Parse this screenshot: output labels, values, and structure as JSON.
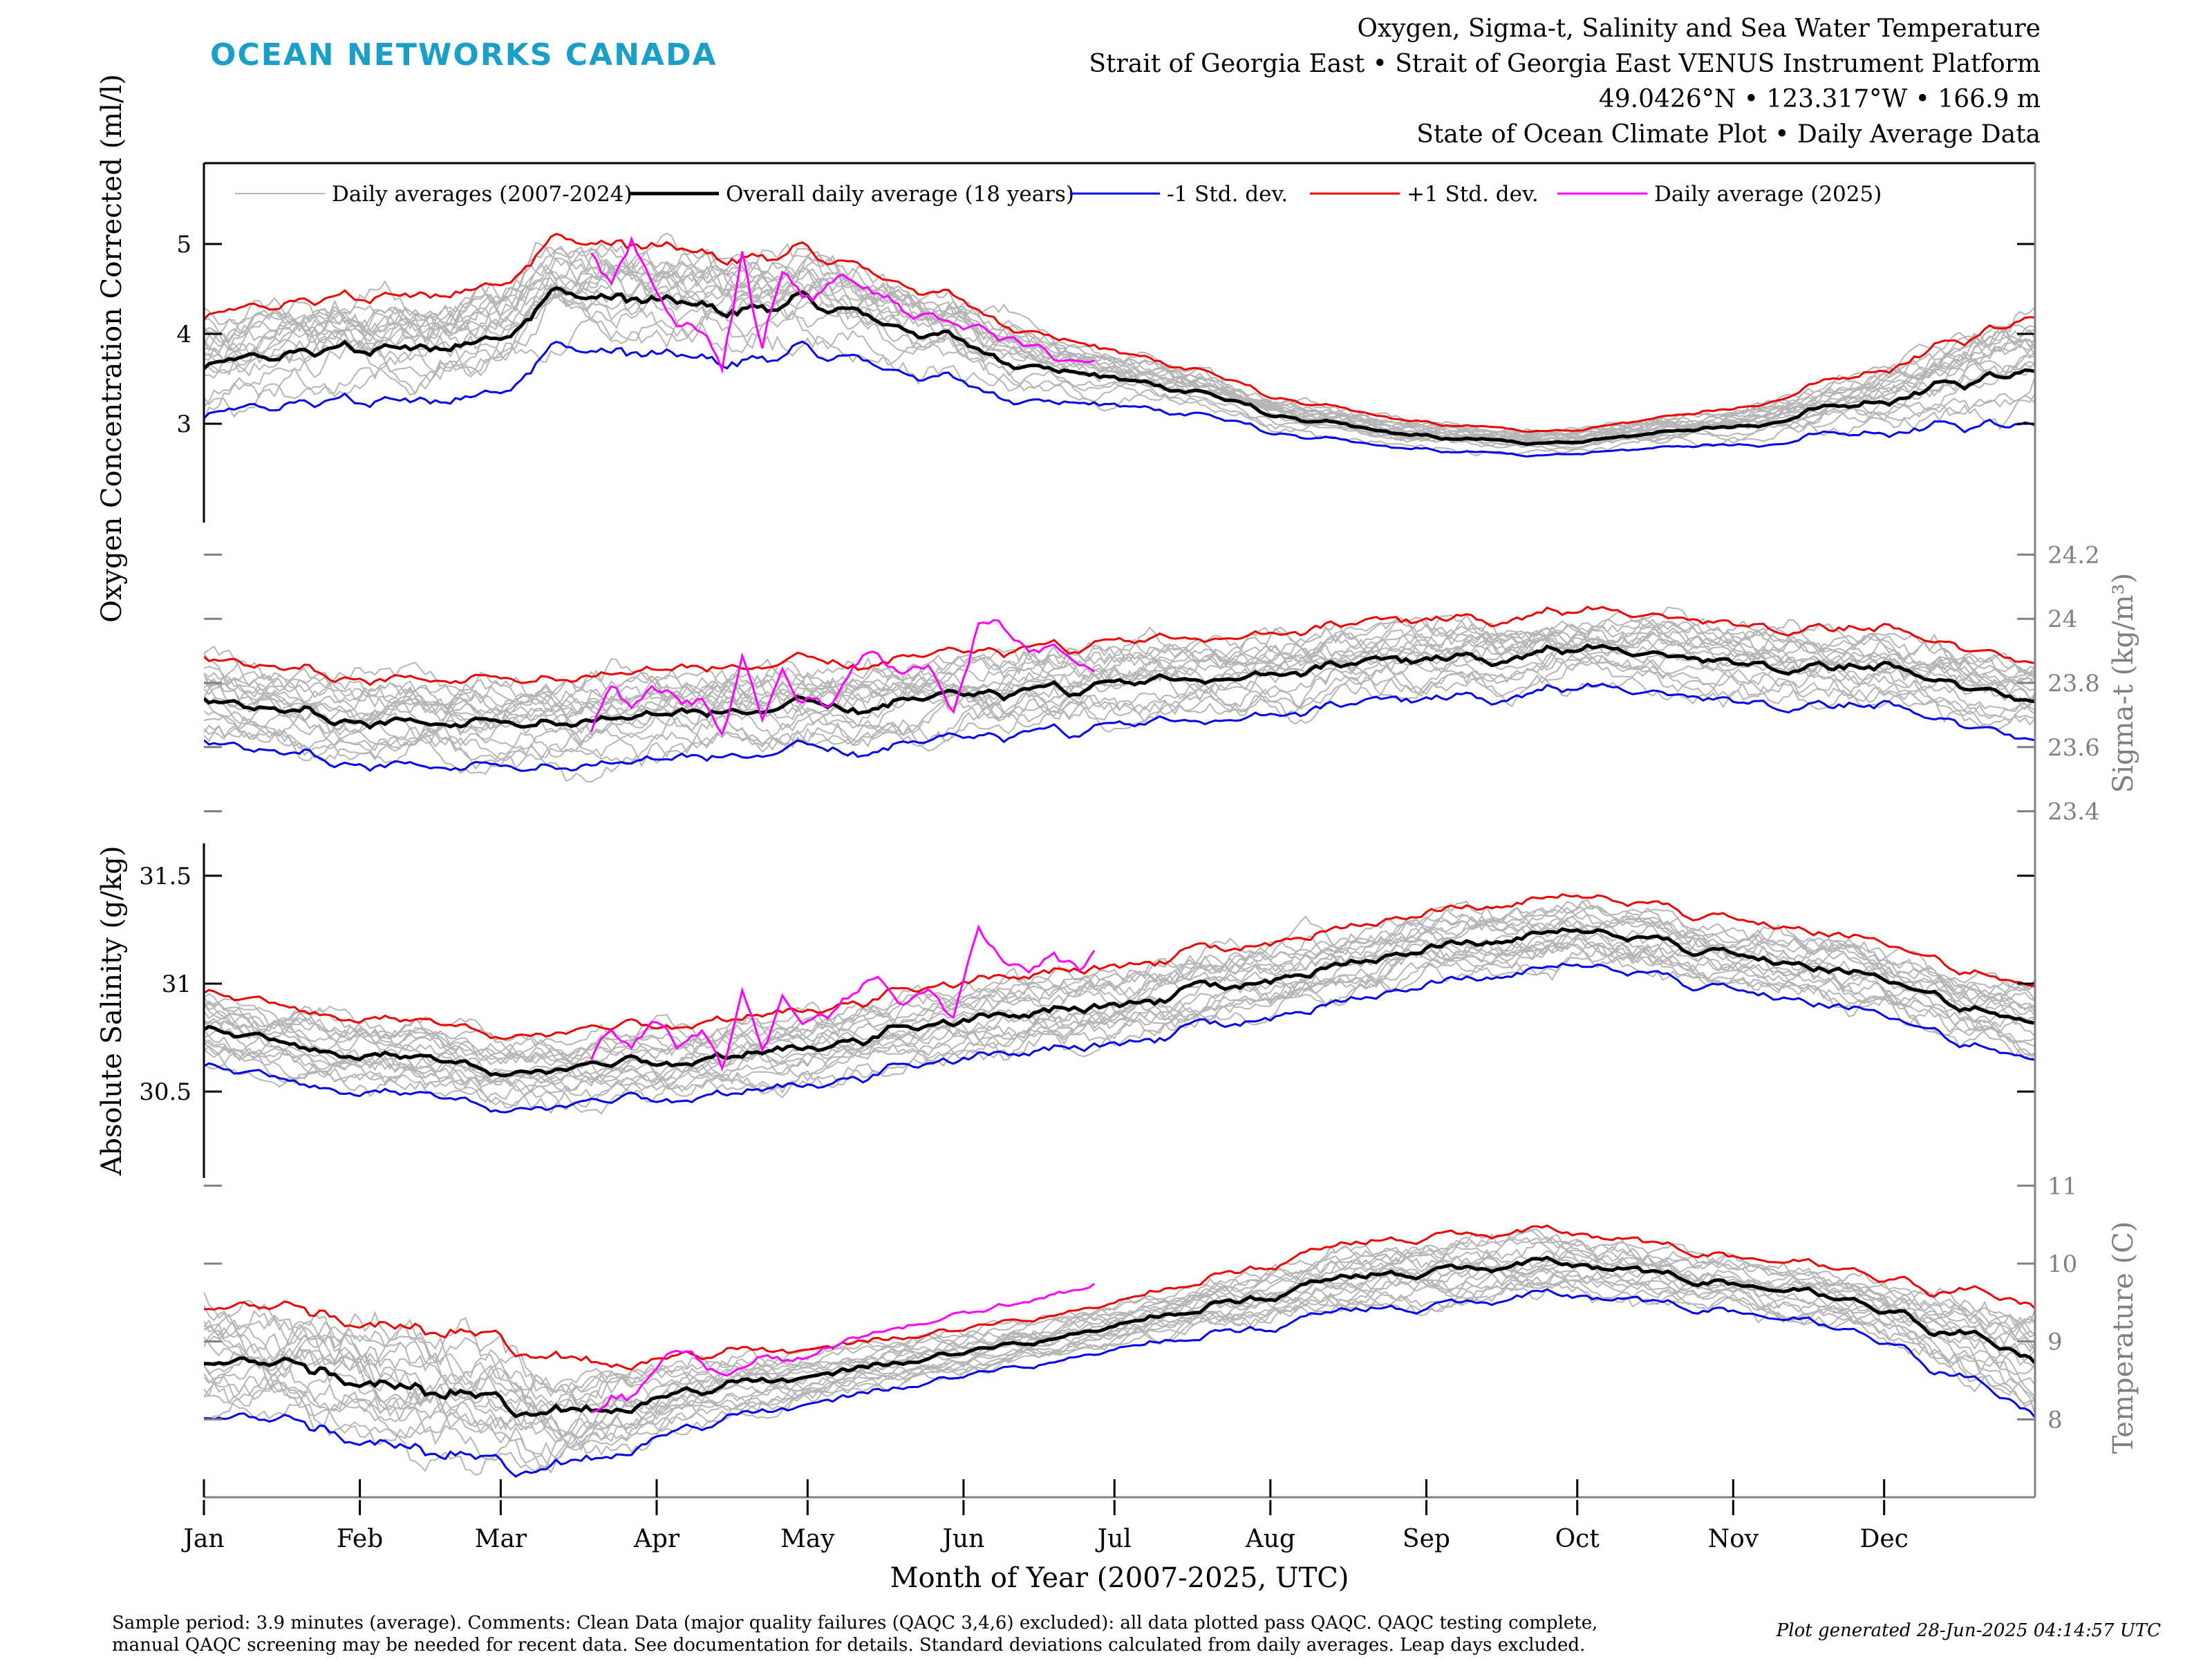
{
  "header": {
    "logo_text": "OCEAN NETWORKS CANADA",
    "title_lines": [
      "Oxygen, Sigma-t, Salinity and Sea Water Temperature",
      "Strait of Georgia East • Strait of Georgia East VENUS Instrument Platform",
      "49.0426°N • 123.317°W • 166.9 m",
      "State of Ocean Climate Plot • Daily Average Data"
    ]
  },
  "footer": {
    "notes_line1": "Sample period: 3.9 minutes (average). Comments: Clean Data (major quality failures (QAQC 3,4,6) excluded): all data plotted pass QAQC. QAQC testing complete,",
    "notes_line2": "manual QAQC screening may be needed for recent data. See documentation for details. Standard deviations calculated from daily averages. Leap days excluded.",
    "generated": "Plot generated 28-Jun-2025 04:14:57 UTC"
  },
  "colors": {
    "history": "#b5b5b5",
    "mean": "#000000",
    "minus_std": "#0000ee",
    "plus_std": "#ee0000",
    "current_year": "#ff00ff",
    "right_axis": "#808080",
    "logo": "#1a9fc8"
  },
  "chart_data": {
    "type": "line",
    "xlabel": "Month of Year (2007-2025, UTC)",
    "x_ticks": [
      "Jan",
      "Feb",
      "Mar",
      "Apr",
      "May",
      "Jun",
      "Jul",
      "Aug",
      "Sep",
      "Oct",
      "Nov",
      "Dec"
    ],
    "x_tick_days": [
      1,
      32,
      60,
      91,
      121,
      152,
      182,
      213,
      244,
      274,
      305,
      335
    ],
    "xlim": [
      1,
      365
    ],
    "legend": {
      "placement": "top",
      "entries": [
        "Daily averages (2007-2024)",
        "Overall daily average (18 years)",
        "-1 Std. dev.",
        "+1 Std. dev.",
        "Daily average (2025)"
      ]
    },
    "current_year_last_day": 178,
    "current_year_first_day": 78,
    "history_count": 18,
    "panels": [
      {
        "id": "oxygen",
        "ylabel": "Oxygen Concentration Corrected (ml/l)",
        "axis_side": "left",
        "yticks": [
          3,
          4,
          5
        ],
        "ylim": [
          1.9,
          5.9
        ],
        "mean": {
          "days": [
            1,
            15,
            32,
            45,
            60,
            70,
            91,
            105,
            121,
            135,
            152,
            165,
            182,
            200,
            213,
            230,
            244,
            260,
            274,
            290,
            305,
            320,
            335,
            350,
            365
          ],
          "values": [
            3.6,
            3.75,
            3.85,
            3.8,
            4.0,
            4.45,
            4.35,
            4.25,
            4.35,
            4.15,
            3.9,
            3.65,
            3.5,
            3.35,
            3.1,
            2.95,
            2.85,
            2.8,
            2.8,
            2.9,
            2.95,
            3.1,
            3.25,
            3.45,
            3.65
          ]
        },
        "std": {
          "days": [
            1,
            60,
            91,
            121,
            152,
            182,
            213,
            244,
            274,
            305,
            335,
            365
          ],
          "values": [
            0.55,
            0.6,
            0.6,
            0.55,
            0.45,
            0.3,
            0.2,
            0.15,
            0.13,
            0.2,
            0.35,
            0.6
          ]
        },
        "current": {
          "days": [
            78,
            82,
            86,
            90,
            95,
            100,
            104,
            108,
            112,
            116,
            120,
            125,
            130,
            135,
            140,
            145,
            150,
            155,
            160,
            165,
            170,
            175,
            178
          ],
          "values": [
            4.9,
            4.5,
            5.1,
            4.5,
            4.2,
            4.0,
            3.6,
            4.9,
            3.8,
            4.7,
            4.4,
            4.5,
            4.6,
            4.4,
            4.3,
            4.2,
            4.1,
            4.15,
            3.95,
            3.85,
            3.75,
            3.7,
            3.7
          ]
        }
      },
      {
        "id": "sigma_t",
        "ylabel": "Sigma-t (kg/m³)",
        "axis_side": "right",
        "yticks": [
          23.4,
          23.6,
          23.8,
          24,
          24.2
        ],
        "ylim": [
          23.3,
          24.3
        ],
        "mean": {
          "days": [
            1,
            15,
            32,
            45,
            60,
            75,
            91,
            105,
            121,
            135,
            152,
            165,
            182,
            200,
            213,
            230,
            244,
            260,
            274,
            290,
            305,
            320,
            335,
            350,
            365
          ],
          "values": [
            23.75,
            23.72,
            23.67,
            23.68,
            23.67,
            23.68,
            23.7,
            23.71,
            23.72,
            23.72,
            23.76,
            23.77,
            23.8,
            23.81,
            23.83,
            23.86,
            23.88,
            23.87,
            23.9,
            23.89,
            23.86,
            23.85,
            23.84,
            23.79,
            23.76
          ]
        },
        "std": {
          "days": [
            1,
            91,
            182,
            274,
            365
          ],
          "values": [
            0.13,
            0.14,
            0.13,
            0.12,
            0.12
          ]
        },
        "current": {
          "days": [
            78,
            82,
            86,
            90,
            95,
            100,
            104,
            108,
            112,
            116,
            120,
            125,
            130,
            135,
            140,
            145,
            150,
            155,
            160,
            165,
            170,
            175,
            178
          ],
          "values": [
            23.66,
            23.78,
            23.72,
            23.8,
            23.75,
            23.74,
            23.62,
            23.86,
            23.68,
            23.83,
            23.74,
            23.72,
            23.85,
            23.9,
            23.82,
            23.87,
            23.7,
            24.0,
            23.97,
            23.89,
            23.92,
            23.86,
            23.82
          ]
        }
      },
      {
        "id": "salinity",
        "ylabel": "Absolute Salinity (g/kg)",
        "axis_side": "left",
        "yticks": [
          30.5,
          31,
          31.5
        ],
        "ylim": [
          30.1,
          31.65
        ],
        "mean": {
          "days": [
            1,
            15,
            32,
            45,
            60,
            75,
            91,
            105,
            121,
            135,
            152,
            165,
            182,
            200,
            213,
            230,
            244,
            260,
            274,
            290,
            305,
            320,
            335,
            350,
            365
          ],
          "values": [
            30.8,
            30.74,
            30.68,
            30.66,
            30.6,
            30.6,
            30.64,
            30.66,
            30.7,
            30.76,
            30.82,
            30.86,
            30.9,
            30.98,
            31.02,
            31.1,
            31.18,
            31.2,
            31.24,
            31.2,
            31.12,
            31.08,
            31.02,
            30.9,
            30.84
          ]
        },
        "std": {
          "days": [
            1,
            91,
            182,
            274,
            365
          ],
          "values": [
            0.17,
            0.17,
            0.18,
            0.16,
            0.17
          ]
        },
        "current": {
          "days": [
            78,
            82,
            86,
            90,
            95,
            100,
            104,
            108,
            112,
            116,
            120,
            125,
            130,
            135,
            140,
            145,
            150,
            155,
            160,
            165,
            170,
            175,
            178
          ],
          "values": [
            30.66,
            30.78,
            30.7,
            30.82,
            30.72,
            30.8,
            30.62,
            30.96,
            30.7,
            30.92,
            30.82,
            30.84,
            30.95,
            31.02,
            30.9,
            30.96,
            30.86,
            31.28,
            31.12,
            31.04,
            31.14,
            31.06,
            31.12
          ]
        }
      },
      {
        "id": "temperature",
        "ylabel": "Temperature (C)",
        "axis_side": "right",
        "yticks": [
          8,
          9,
          10,
          11
        ],
        "ylim": [
          7.0,
          11.1
        ],
        "mean": {
          "days": [
            1,
            15,
            32,
            45,
            60,
            68,
            78,
            91,
            105,
            121,
            135,
            152,
            165,
            182,
            200,
            213,
            230,
            244,
            260,
            274,
            290,
            305,
            320,
            335,
            350,
            365
          ],
          "values": [
            8.8,
            8.75,
            8.55,
            8.4,
            8.25,
            8.0,
            8.1,
            8.25,
            8.4,
            8.55,
            8.7,
            8.85,
            9.0,
            9.2,
            9.45,
            9.6,
            9.85,
            9.9,
            9.95,
            10.0,
            9.85,
            9.75,
            9.6,
            9.4,
            9.1,
            8.75
          ]
        },
        "std": {
          "days": [
            1,
            60,
            91,
            121,
            152,
            182,
            213,
            244,
            274,
            305,
            335,
            365
          ],
          "values": [
            0.7,
            0.8,
            0.5,
            0.35,
            0.3,
            0.3,
            0.4,
            0.45,
            0.4,
            0.35,
            0.4,
            0.7
          ]
        },
        "current": {
          "days": [
            78,
            82,
            86,
            90,
            95,
            100,
            104,
            108,
            112,
            116,
            120,
            125,
            130,
            135,
            140,
            145,
            150,
            155,
            160,
            165,
            170,
            175,
            178
          ],
          "values": [
            8.1,
            8.3,
            8.25,
            8.6,
            8.9,
            8.7,
            8.6,
            8.65,
            8.8,
            8.75,
            8.8,
            8.95,
            9.0,
            9.1,
            9.2,
            9.25,
            9.35,
            9.4,
            9.45,
            9.5,
            9.6,
            9.65,
            9.7
          ]
        }
      }
    ]
  }
}
